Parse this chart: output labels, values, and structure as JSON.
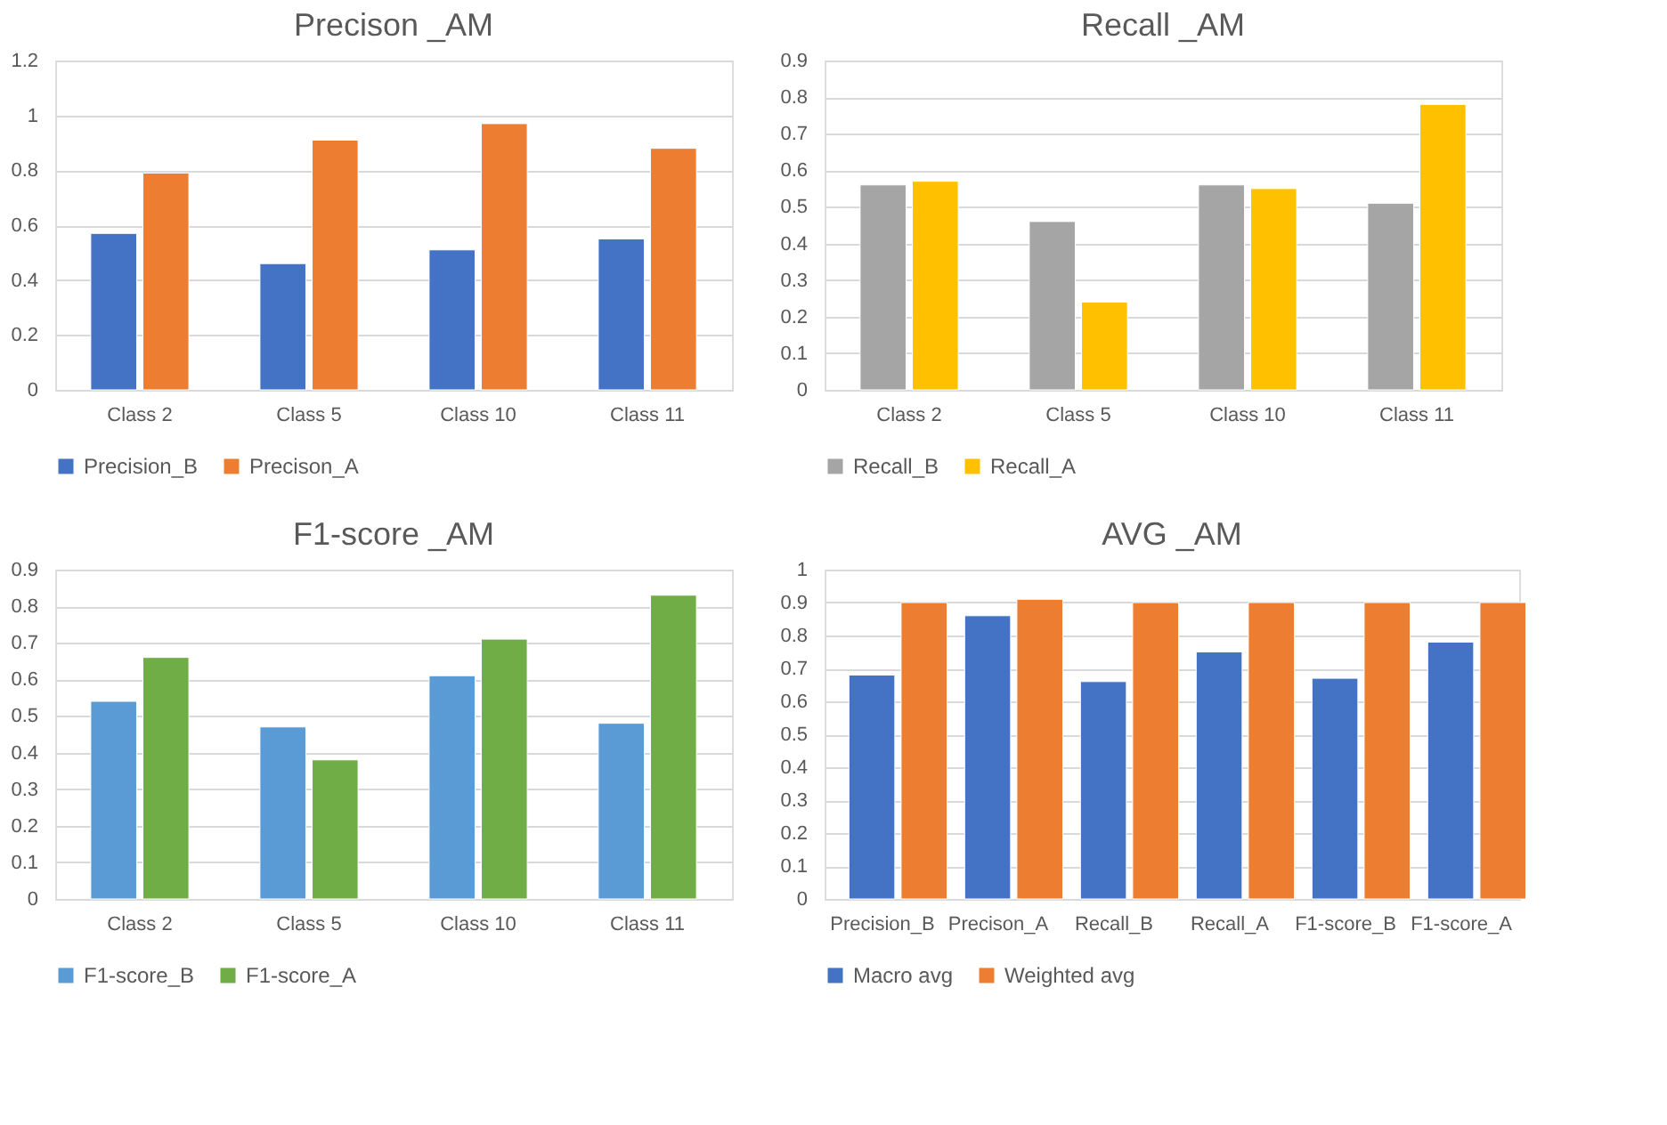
{
  "chart_data": [
    {
      "type": "bar",
      "title": "Precison _AM",
      "categories": [
        "Class 2",
        "Class 5",
        "Class 10",
        "Class 11"
      ],
      "series": [
        {
          "name": "Precision_B",
          "color": "#4472c4",
          "values": [
            0.57,
            0.46,
            0.51,
            0.55
          ]
        },
        {
          "name": "Precison_A",
          "color": "#ed7d31",
          "values": [
            0.79,
            0.91,
            0.97,
            0.88
          ]
        }
      ],
      "ylim": [
        0,
        1.2
      ],
      "yticks": [
        0,
        0.2,
        0.4,
        0.6,
        0.8,
        1,
        1.2
      ],
      "grid": "y",
      "legend": "bottom"
    },
    {
      "type": "bar",
      "title": "Recall _AM",
      "categories": [
        "Class 2",
        "Class 5",
        "Class 10",
        "Class 11"
      ],
      "series": [
        {
          "name": "Recall_B",
          "color": "#a5a5a5",
          "values": [
            0.56,
            0.46,
            0.56,
            0.51
          ]
        },
        {
          "name": "Recall_A",
          "color": "#ffc000",
          "values": [
            0.57,
            0.24,
            0.55,
            0.78
          ]
        }
      ],
      "ylim": [
        0,
        0.9
      ],
      "yticks": [
        0,
        0.1,
        0.2,
        0.3,
        0.4,
        0.5,
        0.6,
        0.7,
        0.8,
        0.9
      ],
      "grid": "y",
      "legend": "bottom"
    },
    {
      "type": "bar",
      "title": "F1-score _AM",
      "categories": [
        "Class 2",
        "Class 5",
        "Class 10",
        "Class 11"
      ],
      "series": [
        {
          "name": "F1-score_B",
          "color": "#5b9bd5",
          "values": [
            0.54,
            0.47,
            0.61,
            0.48
          ]
        },
        {
          "name": "F1-score_A",
          "color": "#70ad47",
          "values": [
            0.66,
            0.38,
            0.71,
            0.83
          ]
        }
      ],
      "ylim": [
        0,
        0.9
      ],
      "yticks": [
        0,
        0.1,
        0.2,
        0.3,
        0.4,
        0.5,
        0.6,
        0.7,
        0.8,
        0.9
      ],
      "grid": "y",
      "legend": "bottom"
    },
    {
      "type": "bar",
      "title": "AVG _AM",
      "categories": [
        "Precision_B",
        "Precison_A",
        "Recall_B",
        "Recall_A",
        "F1-score_B",
        "F1-score_A"
      ],
      "series": [
        {
          "name": "Macro avg",
          "color": "#4472c4",
          "values": [
            0.68,
            0.86,
            0.66,
            0.75,
            0.67,
            0.78
          ]
        },
        {
          "name": "Weighted avg",
          "color": "#ed7d31",
          "values": [
            0.9,
            0.91,
            0.9,
            0.9,
            0.9,
            0.9
          ]
        }
      ],
      "ylim": [
        0,
        1
      ],
      "yticks": [
        0,
        0.1,
        0.2,
        0.3,
        0.4,
        0.5,
        0.6,
        0.7,
        0.8,
        0.9,
        1
      ],
      "grid": "y",
      "legend": "bottom"
    }
  ]
}
